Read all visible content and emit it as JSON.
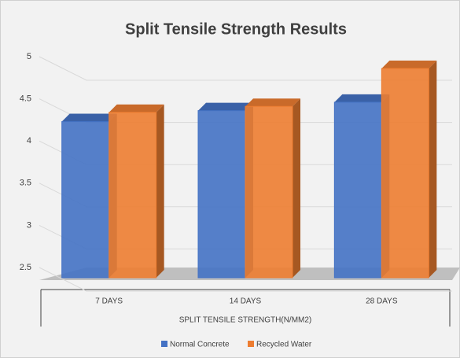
{
  "chart_data": {
    "type": "bar3d",
    "title": "Split Tensile Strength Results",
    "categories": [
      "7 DAYS",
      "14 DAYS",
      "28 DAYS"
    ],
    "x_label": "SPLIT TENSILE STRENGTH(N/MM2)",
    "series": [
      {
        "name": "Normal Concrete",
        "color": "#4472c4",
        "values": [
          4.23,
          4.36,
          4.46
        ]
      },
      {
        "name": "Recycled Water",
        "color": "#ed7d31",
        "values": [
          4.34,
          4.41,
          4.86
        ]
      }
    ],
    "ylim": [
      2.5,
      5
    ],
    "yticks": [
      2.5,
      3,
      3.5,
      4,
      4.5,
      5
    ],
    "grid": true,
    "legend": "bottom"
  }
}
